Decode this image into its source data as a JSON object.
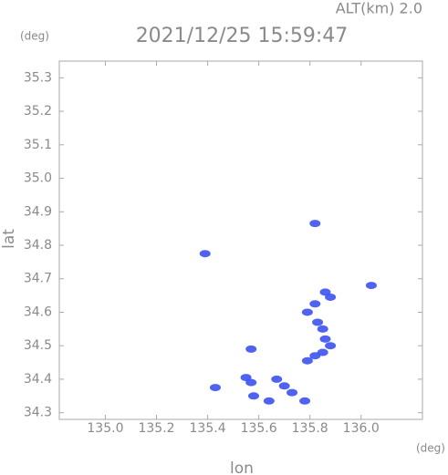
{
  "chart_data": {
    "type": "scatter",
    "title": "2021/12/25 15:59:47",
    "subtitle": "ALT(km)  2.0",
    "x_label": "lon",
    "y_label": "lat",
    "x_unit": "(deg)",
    "y_unit": "(deg)",
    "color": "#3d52ee",
    "x": [
      135.82,
      135.39,
      136.04,
      135.86,
      135.88,
      135.82,
      135.79,
      135.83,
      135.85,
      135.86,
      135.88,
      135.85,
      135.82,
      135.79,
      135.57,
      135.55,
      135.57,
      135.58,
      135.67,
      135.43,
      135.64,
      135.73,
      135.78,
      135.7
    ],
    "y": [
      34.865,
      34.775,
      34.68,
      34.66,
      34.645,
      34.625,
      34.6,
      34.57,
      34.55,
      34.52,
      34.5,
      34.48,
      34.47,
      34.455,
      34.49,
      34.405,
      34.39,
      34.35,
      34.4,
      34.375,
      34.335,
      34.36,
      34.335,
      34.38
    ],
    "xlim": [
      134.82,
      136.24
    ],
    "ylim": [
      34.28,
      35.35
    ],
    "xticks": [
      {
        "value": 135,
        "label": "135.0"
      },
      135.2,
      135.4,
      135.6,
      135.8,
      {
        "value": 136,
        "label": "136.0"
      }
    ],
    "yticks": [
      35.3,
      35.2,
      35.1,
      {
        "value": 35,
        "label": "35.0"
      },
      34.9,
      34.8,
      34.7,
      34.6,
      34.5,
      34.4,
      34.3
    ]
  }
}
